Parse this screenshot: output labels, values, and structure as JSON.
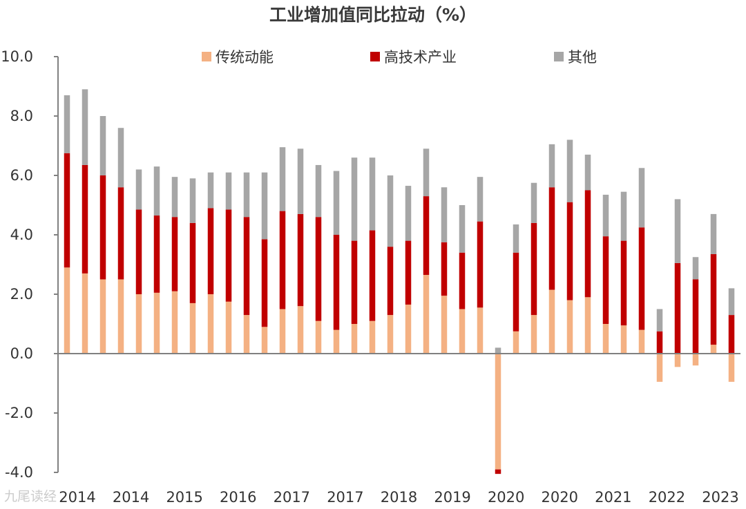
{
  "chart_data": {
    "type": "bar",
    "stacked": true,
    "title": "工业增加值同比拉动（%）",
    "ylim": [
      -4,
      10
    ],
    "yticks": [
      "10.0",
      "8.0",
      "6.0",
      "4.0",
      "2.0",
      "0.0",
      "-2.0",
      "-4.0"
    ],
    "x_tick_labels": [
      "2014",
      "2014",
      "2015",
      "2016",
      "2017",
      "2017",
      "2018",
      "2019",
      "2020",
      "2020",
      "2021",
      "2022",
      "2023"
    ],
    "legend": [
      {
        "name": "传统动能",
        "color": "#F4B183"
      },
      {
        "name": "高技术产业",
        "color": "#C00000"
      },
      {
        "name": "其他",
        "color": "#A6A6A6"
      }
    ],
    "series": [
      {
        "name": "传统动能",
        "color": "#F4B183",
        "values": [
          2.9,
          2.7,
          2.5,
          2.5,
          2.0,
          2.05,
          2.1,
          1.7,
          2.0,
          1.75,
          1.3,
          0.9,
          1.5,
          1.6,
          1.1,
          0.8,
          1.0,
          1.1,
          1.3,
          1.65,
          2.65,
          1.95,
          1.5,
          1.55,
          -3.9,
          0.75,
          1.3,
          2.15,
          1.8,
          1.9,
          1.0,
          0.95,
          0.8,
          -0.95,
          -0.45,
          -0.4,
          0.3,
          -0.95
        ]
      },
      {
        "name": "高技术产业",
        "color": "#C00000",
        "values": [
          3.85,
          3.65,
          3.5,
          3.1,
          2.85,
          2.6,
          2.5,
          2.7,
          2.9,
          3.1,
          3.3,
          2.95,
          3.3,
          3.1,
          3.5,
          3.2,
          2.8,
          3.05,
          2.3,
          2.15,
          2.65,
          1.8,
          1.9,
          2.9,
          -0.15,
          2.65,
          3.1,
          3.45,
          3.3,
          3.6,
          2.95,
          2.85,
          3.45,
          0.75,
          3.05,
          2.5,
          3.05,
          1.3
        ]
      },
      {
        "name": "其他",
        "color": "#A6A6A6",
        "values": [
          1.95,
          2.55,
          2.0,
          2.0,
          1.35,
          1.65,
          1.35,
          1.5,
          1.2,
          1.25,
          1.5,
          2.25,
          2.15,
          2.2,
          1.75,
          2.15,
          2.8,
          2.45,
          2.4,
          1.85,
          1.6,
          1.85,
          1.6,
          1.5,
          0.2,
          0.95,
          1.35,
          1.45,
          2.1,
          1.2,
          1.4,
          1.65,
          2.0,
          0.75,
          2.15,
          0.75,
          1.35,
          0.9
        ]
      }
    ]
  },
  "watermark": "九尾读经"
}
